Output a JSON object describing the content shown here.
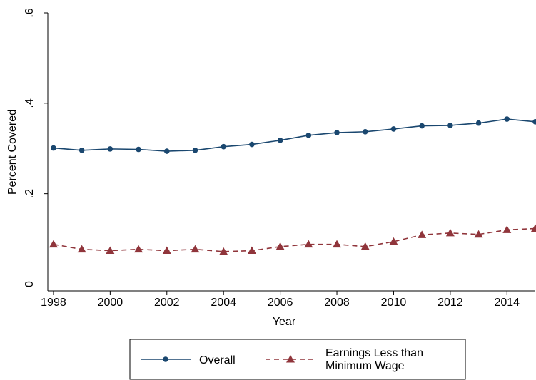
{
  "chart_data": {
    "type": "line",
    "x": [
      1998,
      1999,
      2000,
      2001,
      2002,
      2003,
      2004,
      2005,
      2006,
      2007,
      2008,
      2009,
      2010,
      2011,
      2012,
      2013,
      2014,
      2015
    ],
    "series": [
      {
        "name": "Overall",
        "color": "#1a476f",
        "marker": "circle",
        "dash": false,
        "values": [
          0.301,
          0.296,
          0.299,
          0.298,
          0.294,
          0.296,
          0.304,
          0.309,
          0.318,
          0.329,
          0.335,
          0.337,
          0.343,
          0.35,
          0.351,
          0.356,
          0.365,
          0.359
        ]
      },
      {
        "name": "Earnings Less than Minimum Wage",
        "color": "#90353b",
        "marker": "triangle",
        "dash": true,
        "values": [
          0.088,
          0.077,
          0.074,
          0.077,
          0.074,
          0.077,
          0.072,
          0.074,
          0.083,
          0.088,
          0.088,
          0.083,
          0.094,
          0.109,
          0.113,
          0.11,
          0.12,
          0.123
        ]
      }
    ],
    "xlabel": "Year",
    "ylabel": "Percent Covered",
    "xlim": [
      1997.8,
      2015
    ],
    "ylim": [
      -0.015,
      0.6
    ],
    "xticks": [
      1998,
      2000,
      2002,
      2004,
      2006,
      2008,
      2010,
      2012,
      2014
    ],
    "yticks": [
      0,
      {
        "value": 0.2,
        "label": ".2"
      },
      {
        "value": 0.4,
        "label": ".4"
      },
      {
        "value": 0.6,
        "label": ".6"
      }
    ],
    "grid": false
  }
}
